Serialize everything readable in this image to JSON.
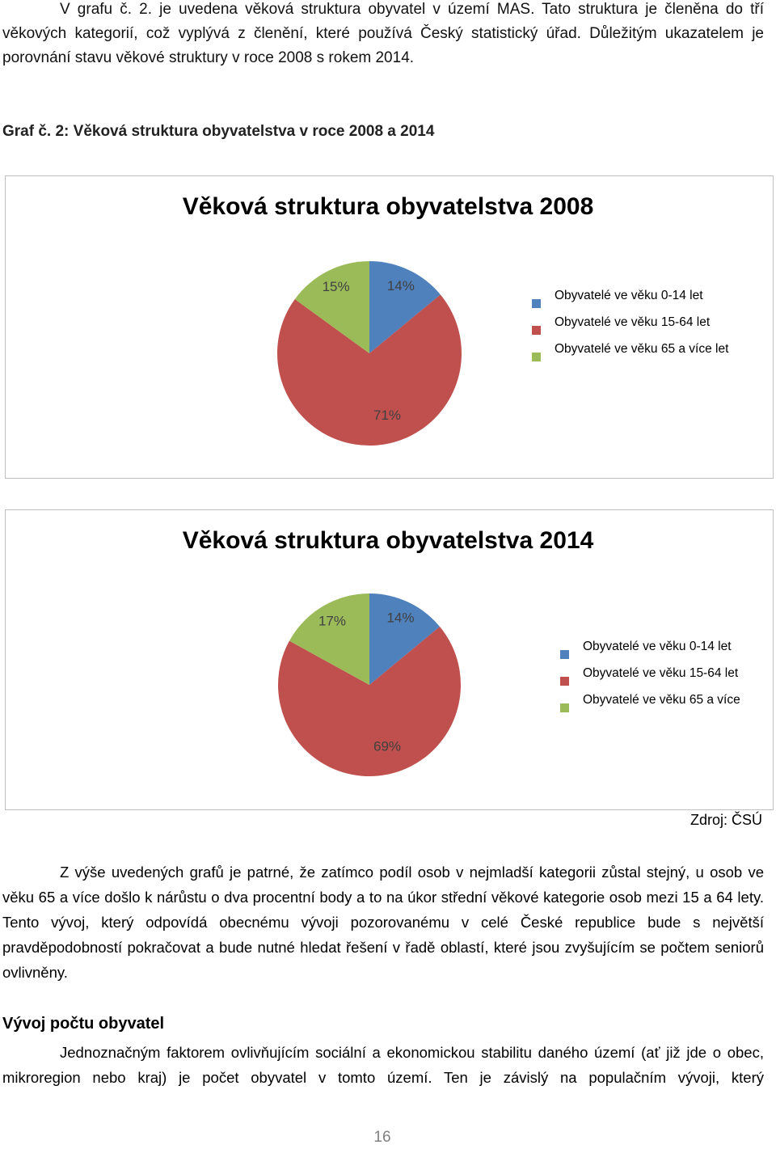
{
  "intro": "V grafu č. 2. je uvedena věková struktura obyvatel v území MAS. Tato struktura je členěna do tří věkových kategorií, což vyplývá z členění, které používá Český statistický úřad. Důležitým ukazatelem je porovnání stavu věkové struktury v roce 2008 s rokem 2014.",
  "caption": "Graf č. 2: Věková struktura obyvatelstva v roce 2008 a 2014",
  "chart_data": [
    {
      "type": "pie",
      "title": "Věková struktura obyvatelstva 2008",
      "categories": [
        "Obyvatelé ve věku 0-14 let",
        "Obyvatelé ve věku 15-64 let",
        "Obyvatelé ve věku 65 a více let"
      ],
      "values": [
        14,
        71,
        15
      ],
      "value_labels": [
        "14%",
        "71%",
        "15%"
      ],
      "colors": [
        "#4f81bd",
        "#c0504d",
        "#9bbb59"
      ],
      "legend": "right"
    },
    {
      "type": "pie",
      "title": "Věková struktura obyvatelstva 2014",
      "categories": [
        "Obyvatelé ve věku 0-14 let",
        "Obyvatelé ve věku 15-64 let",
        "Obyvatelé ve věku 65 a více"
      ],
      "values": [
        14,
        69,
        17
      ],
      "value_labels": [
        "14%",
        "69%",
        "17%"
      ],
      "colors": [
        "#4f81bd",
        "#c0504d",
        "#9bbb59"
      ],
      "legend": "right"
    }
  ],
  "source": "Zdroj: ČSÚ",
  "conclusion": "Z výše uvedených grafů je patrné, že zatímco podíl osob v nejmladší kategorii zůstal stejný, u osob ve věku 65 a více došlo k nárůstu o dva procentní body a to na úkor střední věkové kategorie osob mezi 15 a 64 lety. Tento vývoj, který odpovídá obecnému vývoji pozorovanému v celé České republice bude s největší pravděpodobností pokračovat a bude nutné hledat řešení v řadě oblastí, které jsou zvyšujícím se počtem seniorů ovlivněny.",
  "section_heading": "Vývoj počtu obyvatel",
  "section_text": "Jednoznačným faktorem ovlivňujícím sociální a ekonomickou stabilitu daného území (ať již jde o obec, mikroregion nebo kraj) je počet obyvatel v tomto území. Ten je závislý na populačním vývoji, který",
  "page_number": "16"
}
